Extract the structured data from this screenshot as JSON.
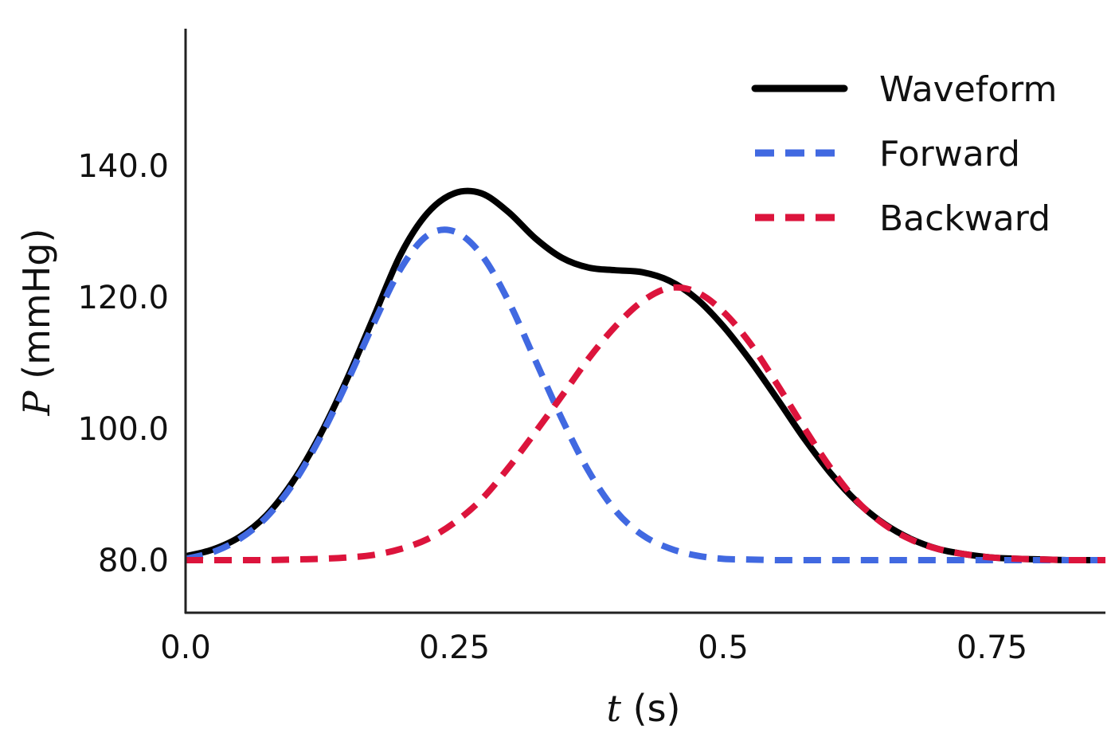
{
  "chart_data": {
    "type": "line",
    "xlabel": {
      "symbol": "t",
      "unit": " (s)"
    },
    "ylabel": {
      "symbol": "P",
      "unit": " (mmHg)"
    },
    "xlim": [
      0.0,
      0.87
    ],
    "ylim": [
      72,
      160
    ],
    "x_ticks": [
      {
        "value": 0.0,
        "label": "0.0"
      },
      {
        "value": 0.25,
        "label": "0.25"
      },
      {
        "value": 0.5,
        "label": "0.5"
      },
      {
        "value": 0.75,
        "label": "0.75"
      }
    ],
    "y_ticks": [
      {
        "value": 80,
        "label": "80.0"
      },
      {
        "value": 100,
        "label": "100.0"
      },
      {
        "value": 120,
        "label": "120.0"
      },
      {
        "value": 140,
        "label": "140.0"
      }
    ],
    "grid": false,
    "legend_position": "top-right",
    "series": [
      {
        "name": "Waveform",
        "color": "#000000",
        "style": "solid",
        "x": [
          0.0,
          0.025,
          0.05,
          0.075,
          0.1,
          0.125,
          0.15,
          0.175,
          0.2,
          0.225,
          0.25,
          0.275,
          0.3,
          0.325,
          0.35,
          0.375,
          0.4,
          0.425,
          0.45,
          0.475,
          0.5,
          0.525,
          0.55,
          0.575,
          0.6,
          0.625,
          0.65,
          0.675,
          0.7,
          0.725,
          0.75,
          0.775,
          0.8,
          0.825,
          0.85,
          0.87
        ],
        "y": [
          80.6,
          81.6,
          83.5,
          86.8,
          92.0,
          99.0,
          107.5,
          117.0,
          126.5,
          132.8,
          135.8,
          135.8,
          133.0,
          129.0,
          126.0,
          124.5,
          124.1,
          123.8,
          122.5,
          119.8,
          115.6,
          110.4,
          104.6,
          98.6,
          93.2,
          88.8,
          85.5,
          83.2,
          81.7,
          80.9,
          80.4,
          80.2,
          80.1,
          80.0,
          80.0,
          80.0
        ]
      },
      {
        "name": "Forward",
        "color": "#4169e1",
        "style": "dashed",
        "x": [
          0.0,
          0.025,
          0.05,
          0.075,
          0.1,
          0.125,
          0.15,
          0.175,
          0.2,
          0.225,
          0.25,
          0.275,
          0.3,
          0.325,
          0.35,
          0.375,
          0.4,
          0.425,
          0.45,
          0.475,
          0.5,
          0.525,
          0.55,
          0.575,
          0.6,
          0.625,
          0.65,
          0.675,
          0.7,
          0.725,
          0.75,
          0.775,
          0.8,
          0.825,
          0.85,
          0.87
        ],
        "y": [
          80.2,
          81.2,
          83.2,
          86.5,
          91.6,
          98.6,
          107.0,
          116.0,
          124.3,
          129.4,
          130.0,
          126.5,
          119.5,
          110.5,
          101.5,
          93.5,
          87.5,
          83.8,
          81.8,
          80.7,
          80.2,
          80.1,
          80.0,
          80.0,
          80.0,
          80.0,
          80.0,
          80.0,
          80.0,
          80.0,
          80.0,
          80.0,
          80.0,
          80.0,
          80.0,
          80.0
        ]
      },
      {
        "name": "Backward",
        "color": "#dc143c",
        "style": "dashed",
        "x": [
          0.0,
          0.025,
          0.05,
          0.075,
          0.1,
          0.125,
          0.15,
          0.175,
          0.2,
          0.225,
          0.25,
          0.275,
          0.3,
          0.325,
          0.35,
          0.375,
          0.4,
          0.425,
          0.45,
          0.475,
          0.5,
          0.525,
          0.55,
          0.575,
          0.6,
          0.625,
          0.65,
          0.675,
          0.7,
          0.725,
          0.75,
          0.775,
          0.8,
          0.825,
          0.85,
          0.87
        ],
        "y": [
          80.0,
          80.0,
          80.0,
          80.0,
          80.1,
          80.2,
          80.4,
          80.8,
          81.7,
          83.2,
          85.7,
          89.2,
          94.0,
          99.4,
          105.0,
          110.7,
          115.6,
          119.4,
          121.4,
          120.8,
          117.8,
          113.0,
          106.8,
          100.2,
          94.0,
          88.9,
          85.4,
          83.1,
          81.7,
          80.9,
          80.4,
          80.2,
          80.1,
          80.0,
          80.0,
          80.0
        ]
      }
    ]
  }
}
